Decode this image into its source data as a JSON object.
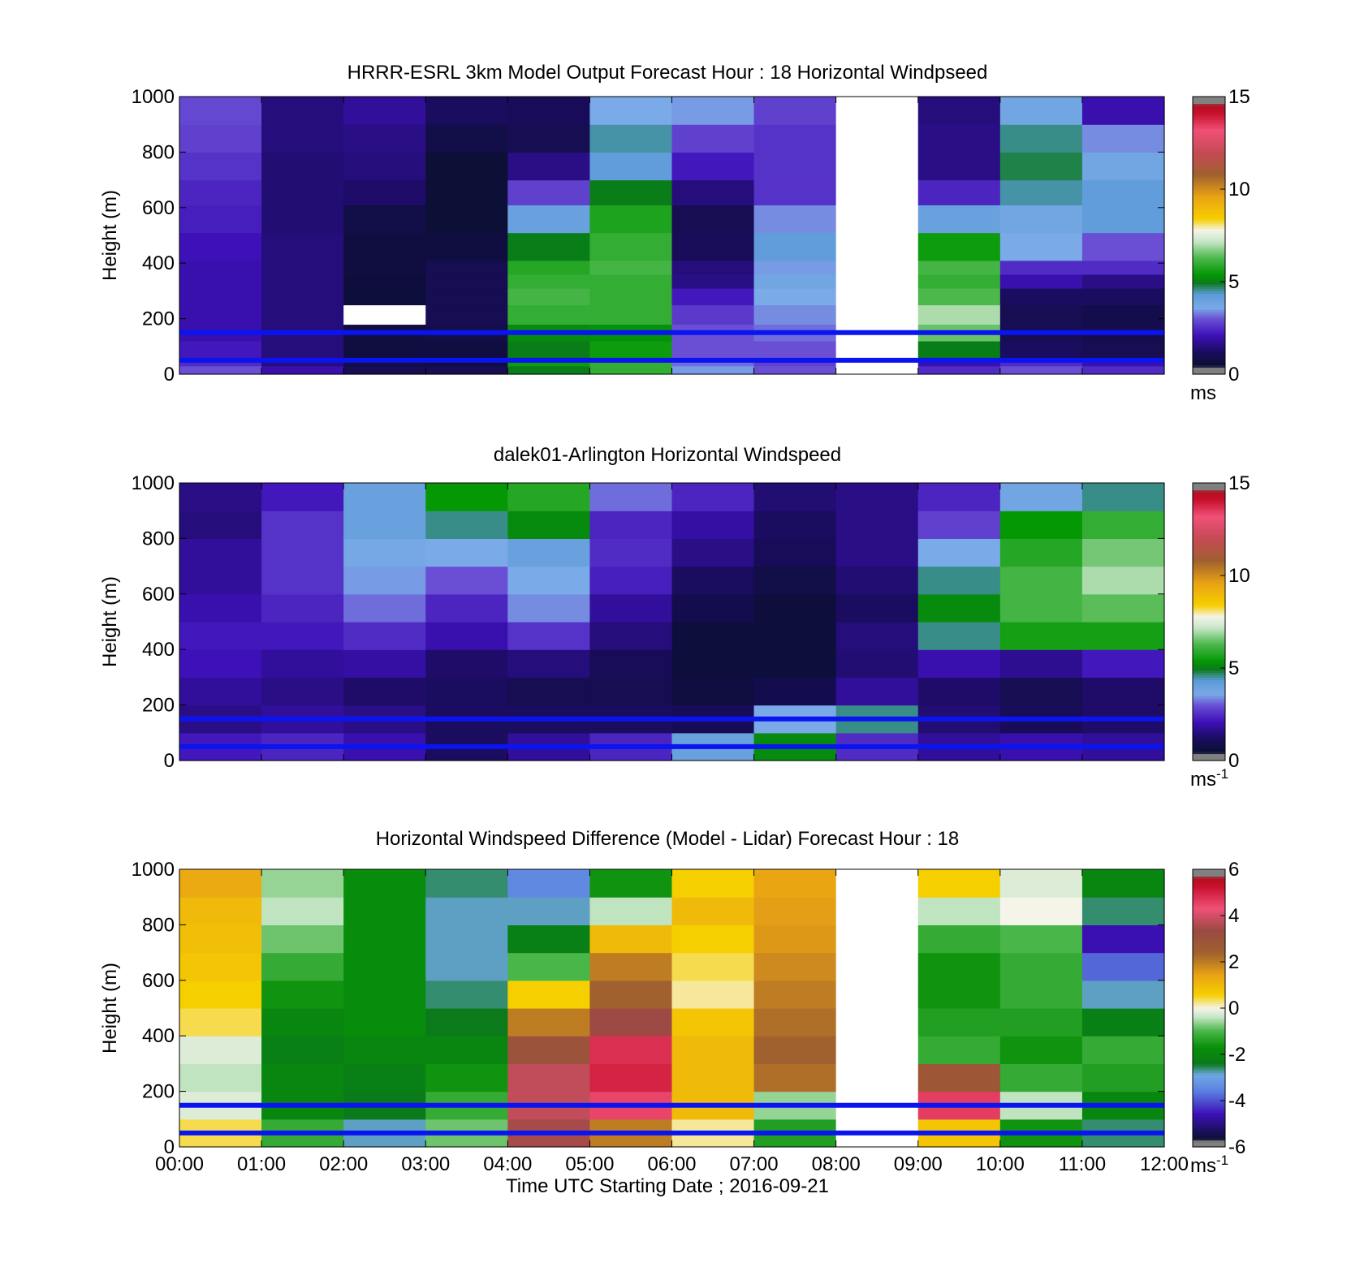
{
  "figure": {
    "xlabel": "Time UTC  Starting Date ; 2016-09-21",
    "x_ticks": [
      "00:00",
      "01:00",
      "02:00",
      "03:00",
      "04:00",
      "05:00",
      "06:00",
      "07:00",
      "08:00",
      "09:00",
      "10:00",
      "11:00",
      "12:00"
    ]
  },
  "chart_data": [
    {
      "type": "heatmap",
      "title": "HRRR-ESRL 3km Model Output   Forecast Hour : 18 Horizontal Windpseed",
      "ylabel": "Height (m)",
      "ylim": [
        0,
        1000
      ],
      "y_ticks": [
        "0",
        "200",
        "400",
        "600",
        "800",
        "1000"
      ],
      "x_range_hours": [
        0,
        12
      ],
      "colorbar": {
        "min": 0,
        "max": 15,
        "ticks": [
          "0",
          "5",
          "10",
          "15"
        ],
        "unit": "ms",
        "unit_sup": ""
      },
      "reference_lines_m": [
        50,
        150
      ],
      "x_hours": [
        0,
        1,
        2,
        3,
        4,
        5,
        6,
        7,
        8,
        9,
        10,
        11
      ],
      "y_levels_m": [
        [
          0,
          30
        ],
        [
          30,
          60
        ],
        [
          60,
          120
        ],
        [
          120,
          180
        ],
        [
          180,
          250
        ],
        [
          250,
          310
        ],
        [
          310,
          360
        ],
        [
          360,
          410
        ],
        [
          410,
          510
        ],
        [
          510,
          610
        ],
        [
          610,
          700
        ],
        [
          700,
          800
        ],
        [
          800,
          900
        ],
        [
          900,
          1000
        ]
      ],
      "values": [
        [
          3.0,
          2.0,
          1.0,
          1.0,
          5.0,
          6.0,
          3.5,
          3.0,
          null,
          2.5,
          3.0,
          2.5
        ],
        [
          2.5,
          1.5,
          0.8,
          0.7,
          5.5,
          6.0,
          3.2,
          2.8,
          null,
          2.0,
          2.5,
          2.0
        ],
        [
          2.2,
          1.5,
          0.7,
          0.7,
          5.0,
          5.5,
          3.0,
          3.0,
          null,
          5.0,
          1.2,
          1.0
        ],
        [
          2.0,
          1.5,
          0.7,
          0.8,
          5.2,
          5.3,
          3.0,
          3.2,
          null,
          6.5,
          1.0,
          0.9
        ],
        [
          2.0,
          1.5,
          null,
          1.0,
          6.0,
          6.0,
          2.7,
          3.4,
          null,
          7.0,
          1.0,
          0.9
        ],
        [
          2.0,
          1.5,
          0.6,
          1.0,
          6.2,
          6.0,
          2.2,
          3.6,
          null,
          6.3,
          1.2,
          1.2
        ],
        [
          2.0,
          1.5,
          0.6,
          1.0,
          6.0,
          6.0,
          1.6,
          3.8,
          null,
          6.0,
          2.0,
          1.6
        ],
        [
          2.0,
          1.5,
          0.7,
          1.0,
          5.8,
          6.2,
          1.5,
          3.5,
          null,
          6.2,
          2.5,
          2.5
        ],
        [
          2.1,
          1.5,
          0.7,
          0.7,
          5.0,
          6.0,
          1.1,
          4.2,
          null,
          5.5,
          3.6,
          3.0
        ],
        [
          2.3,
          1.4,
          0.8,
          0.5,
          4.0,
          5.7,
          1.0,
          3.4,
          null,
          4.0,
          3.8,
          4.2
        ],
        [
          2.4,
          1.4,
          1.3,
          0.5,
          2.8,
          5.0,
          1.5,
          2.6,
          null,
          2.4,
          4.5,
          4.2
        ],
        [
          2.6,
          1.4,
          1.5,
          0.5,
          1.6,
          4.2,
          2.2,
          2.6,
          null,
          1.6,
          4.8,
          3.8
        ],
        [
          2.8,
          1.5,
          1.6,
          0.8,
          1.0,
          4.5,
          2.8,
          2.6,
          null,
          1.6,
          4.6,
          3.4
        ],
        [
          2.9,
          1.5,
          1.8,
          1.2,
          1.1,
          3.6,
          3.5,
          2.8,
          null,
          1.5,
          3.8,
          2.0
        ]
      ]
    },
    {
      "type": "heatmap",
      "title": "dalek01-Arlington  Horizontal Windspeed",
      "ylabel": "Height (m)",
      "ylim": [
        0,
        1000
      ],
      "y_ticks": [
        "0",
        "200",
        "400",
        "600",
        "800",
        "1000"
      ],
      "x_range_hours": [
        0,
        12
      ],
      "colorbar": {
        "min": 0,
        "max": 15,
        "ticks": [
          "0",
          "5",
          "10",
          "15"
        ],
        "unit": "ms",
        "unit_sup": "-1"
      },
      "reference_lines_m": [
        50,
        150
      ],
      "x_hours": [
        0,
        1,
        2,
        3,
        4,
        5,
        6,
        7,
        8,
        9,
        10,
        11
      ],
      "y_levels_m": [
        [
          0,
          100
        ],
        [
          100,
          200
        ],
        [
          200,
          300
        ],
        [
          300,
          400
        ],
        [
          400,
          500
        ],
        [
          500,
          600
        ],
        [
          600,
          700
        ],
        [
          700,
          800
        ],
        [
          800,
          900
        ],
        [
          900,
          1000
        ]
      ],
      "values": [
        [
          2.2,
          2.4,
          2.0,
          1.2,
          1.8,
          2.4,
          4.0,
          5.2,
          2.5,
          1.8,
          2.0,
          1.8
        ],
        [
          1.6,
          1.8,
          1.6,
          1.2,
          1.2,
          1.2,
          1.1,
          3.6,
          4.6,
          1.4,
          1.1,
          1.3
        ],
        [
          1.8,
          1.6,
          1.3,
          1.2,
          1.0,
          1.0,
          0.7,
          0.9,
          1.8,
          1.3,
          1.0,
          1.3
        ],
        [
          2.1,
          1.8,
          1.9,
          1.3,
          1.5,
          1.1,
          0.6,
          0.6,
          1.4,
          2.0,
          1.7,
          2.2
        ],
        [
          2.2,
          2.2,
          2.5,
          2.0,
          2.6,
          1.5,
          0.6,
          0.6,
          1.5,
          4.6,
          5.6,
          5.6
        ],
        [
          2.0,
          2.4,
          3.2,
          2.4,
          3.4,
          1.8,
          0.9,
          0.6,
          1.2,
          5.2,
          6.2,
          6.4
        ],
        [
          1.8,
          2.6,
          3.5,
          3.0,
          3.6,
          2.3,
          1.2,
          0.8,
          1.4,
          4.6,
          6.2,
          7.0
        ],
        [
          1.8,
          2.6,
          3.7,
          3.6,
          4.0,
          2.5,
          1.6,
          1.1,
          1.6,
          3.6,
          5.8,
          6.6
        ],
        [
          1.5,
          2.6,
          4.0,
          4.6,
          5.2,
          2.4,
          1.9,
          1.2,
          1.6,
          2.8,
          5.4,
          6.0
        ],
        [
          1.6,
          2.2,
          4.0,
          5.4,
          5.8,
          3.2,
          2.4,
          1.4,
          1.6,
          2.4,
          3.8,
          4.6
        ]
      ]
    },
    {
      "type": "heatmap",
      "title": "Horizontal Windspeed Difference (Model - Lidar) Forecast Hour : 18",
      "ylabel": "Height (m)",
      "ylim": [
        0,
        1000
      ],
      "y_ticks": [
        "0",
        "200",
        "400",
        "600",
        "800",
        "1000"
      ],
      "x_range_hours": [
        0,
        12
      ],
      "colorbar": {
        "min": -6,
        "max": 6,
        "ticks": [
          "-6",
          "-4",
          "-2",
          "0",
          "2",
          "4",
          "6"
        ],
        "unit": "ms",
        "unit_sup": "-1"
      },
      "reference_lines_m": [
        50,
        150
      ],
      "x_hours": [
        0,
        1,
        2,
        3,
        4,
        5,
        6,
        7,
        8,
        9,
        10,
        11
      ],
      "y_levels_m": [
        [
          0,
          100
        ],
        [
          100,
          200
        ],
        [
          200,
          300
        ],
        [
          300,
          400
        ],
        [
          400,
          500
        ],
        [
          500,
          600
        ],
        [
          600,
          700
        ],
        [
          700,
          800
        ],
        [
          800,
          900
        ],
        [
          900,
          1000
        ]
      ],
      "values": [
        [
          0.4,
          -1.2,
          -2.8,
          -0.8,
          3.5,
          2.0,
          0.2,
          -1.4,
          null,
          0.8,
          -1.6,
          -2.6
        ],
        [
          -0.2,
          -2.0,
          -2.4,
          -1.2,
          3.8,
          4.5,
          1.0,
          -0.6,
          null,
          4.6,
          -0.4,
          -2.0
        ],
        [
          -0.4,
          -2.0,
          -2.2,
          -1.6,
          3.8,
          5.0,
          1.0,
          2.2,
          null,
          2.8,
          -1.2,
          -1.4
        ],
        [
          -0.2,
          -2.2,
          -2.0,
          -2.0,
          3.0,
          4.8,
          1.0,
          2.4,
          null,
          -1.2,
          -1.6,
          -1.2
        ],
        [
          0.4,
          -2.0,
          -1.8,
          -2.4,
          2.0,
          3.4,
          0.8,
          2.2,
          null,
          -1.4,
          -1.4,
          -2.2
        ],
        [
          0.6,
          -1.6,
          -1.8,
          -2.6,
          0.6,
          2.4,
          0.2,
          2.0,
          null,
          -1.6,
          -1.2,
          -2.8
        ],
        [
          0.8,
          -1.2,
          -1.8,
          -2.8,
          -1.0,
          2.0,
          0.4,
          1.8,
          null,
          -1.6,
          -1.2,
          -3.8
        ],
        [
          0.9,
          -0.8,
          -1.8,
          -2.8,
          -2.2,
          1.0,
          0.6,
          1.6,
          null,
          -1.2,
          -1.0,
          -4.6
        ],
        [
          1.0,
          -0.4,
          -1.8,
          -2.8,
          -2.8,
          -0.4,
          1.0,
          1.5,
          null,
          -0.4,
          0.0,
          -2.6
        ],
        [
          1.3,
          -0.6,
          -1.8,
          -2.6,
          -3.4,
          -1.6,
          0.6,
          1.4,
          null,
          0.6,
          -0.2,
          -2.0
        ]
      ]
    }
  ]
}
